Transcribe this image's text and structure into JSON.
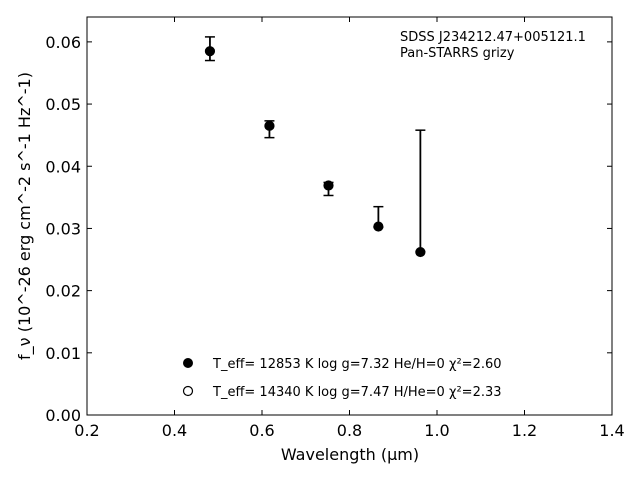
{
  "chart_data": {
    "type": "scatter",
    "xlabel": "Wavelength (μm)",
    "ylabel": "f_ν (10^-26 erg cm^-2 s^-1 Hz^-1)",
    "xlim": [
      0.2,
      1.4
    ],
    "ylim": [
      0.0,
      0.064
    ],
    "x_ticks": [
      "0.2",
      "0.4",
      "0.6",
      "0.8",
      "1.0",
      "1.2",
      "1.4"
    ],
    "y_ticks": [
      "0.00",
      "0.01",
      "0.02",
      "0.03",
      "0.04",
      "0.05",
      "0.06"
    ],
    "annotation_lines": [
      "SDSS J234212.47+005121.1",
      "Pan-STARRS grizy"
    ],
    "observed": {
      "x": [
        0.481,
        0.617,
        0.752,
        0.866,
        0.962
      ],
      "y": [
        0.0583,
        0.0465,
        0.0368,
        0.0302,
        0.0263
      ],
      "err_low": [
        0.057,
        0.0446,
        0.0353,
        0.0302,
        0.0263
      ],
      "err_high": [
        0.0608,
        0.0473,
        0.0374,
        0.0335,
        0.0458
      ]
    },
    "series": [
      {
        "marker": "filled-circle",
        "label": "T_eff= 12853 K  log g=7.32  He/H=0  χ²=2.60",
        "x": [
          0.481,
          0.617,
          0.752,
          0.866,
          0.962
        ],
        "y": [
          0.0585,
          0.0465,
          0.0369,
          0.0303,
          0.0262
        ]
      },
      {
        "marker": "open-circle",
        "label": "T_eff= 14340 K  log g=7.47  H/He=0  χ²=2.33",
        "x": [],
        "y": []
      }
    ],
    "legend_location": "lower-center",
    "grid": false
  }
}
